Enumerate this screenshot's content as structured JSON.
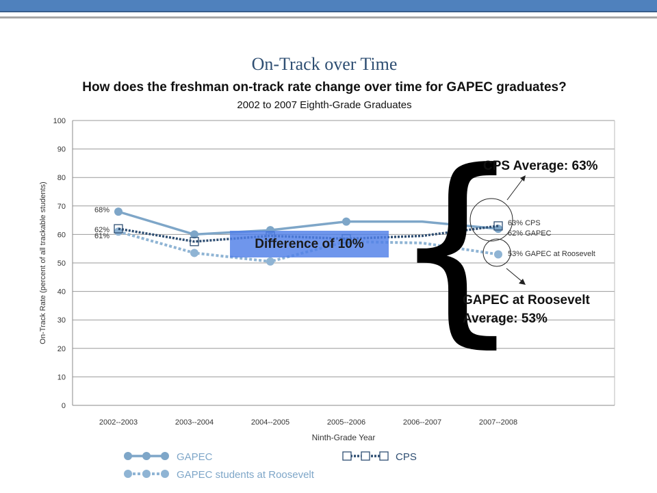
{
  "chart_data": {
    "type": "line",
    "title": "On-Track over Time",
    "subtitle": "How does the freshman on-track rate change over time for GAPEC graduates?",
    "subtitle2": "2002 to 2007 Eighth-Grade Graduates",
    "xlabel": "Ninth-Grade Year",
    "ylabel": "On-Track Rate (percent of all trackable students)",
    "ylim": [
      0,
      100
    ],
    "yticks": [
      0,
      10,
      20,
      30,
      40,
      50,
      60,
      70,
      80,
      90,
      100
    ],
    "categories": [
      "2002--2003",
      "2003--2004",
      "2004--2005",
      "2005--2006",
      "2006--2007",
      "2007--2008"
    ],
    "grid": true,
    "series": [
      {
        "name": "GAPEC",
        "values": [
          68,
          60,
          61.5,
          64.5,
          64.5,
          62
        ],
        "style": "solid",
        "marker": "circle",
        "color": "#7ea6c8",
        "start_label": "68%",
        "end_label": "62% GAPEC"
      },
      {
        "name": "CPS",
        "values": [
          62,
          57.5,
          59.5,
          58.5,
          59.5,
          63
        ],
        "style": "dotted",
        "marker": "square",
        "color": "#2e4e72",
        "start_label": "62%",
        "end_label": "63% CPS"
      },
      {
        "name": "GAPEC students at Roosevelt",
        "values": [
          61,
          53.5,
          50.5,
          57.5,
          57,
          53
        ],
        "style": "dashed",
        "marker": "circle",
        "color": "#8fb4d4",
        "start_label": "61%",
        "end_label": "53% GAPEC at Roosevelt"
      }
    ],
    "legend": {
      "placement": "bottom",
      "items": [
        {
          "label": "GAPEC",
          "series": 0
        },
        {
          "label": "CPS",
          "series": 1
        },
        {
          "label": "GAPEC students at Roosevelt",
          "series": 2
        }
      ]
    },
    "annotations": {
      "difference": "Difference of 10%",
      "cps_average": "CPS Average:  63%",
      "roosevelt_average_line1": "GAPEC at Roosevelt",
      "roosevelt_average_line2": "Average:  53%",
      "brace": "{"
    }
  },
  "colors": {
    "header_bar": "#4f81bd",
    "title": "#2e4e72",
    "highlight_box": "#4f7fe8"
  }
}
